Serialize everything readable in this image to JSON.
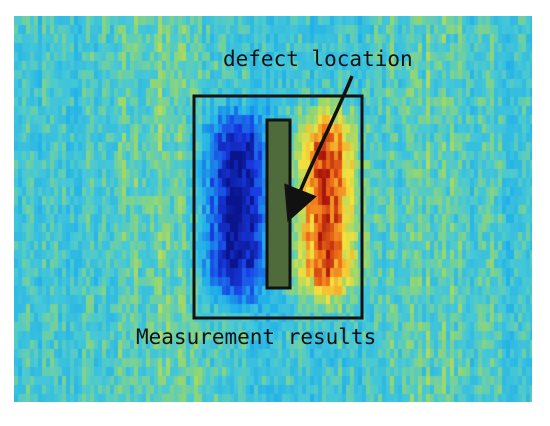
{
  "labels": {
    "defect": "defect location",
    "measurement": "Measurement results"
  },
  "colors": {
    "background_cyan": "#2fbfe8",
    "noise_green": "#8fd86a",
    "negative_lobe": "#1a3de0",
    "positive_lobe": "#e02a10",
    "defect_bar": "#4f6b3c",
    "outline": "#111111"
  }
}
